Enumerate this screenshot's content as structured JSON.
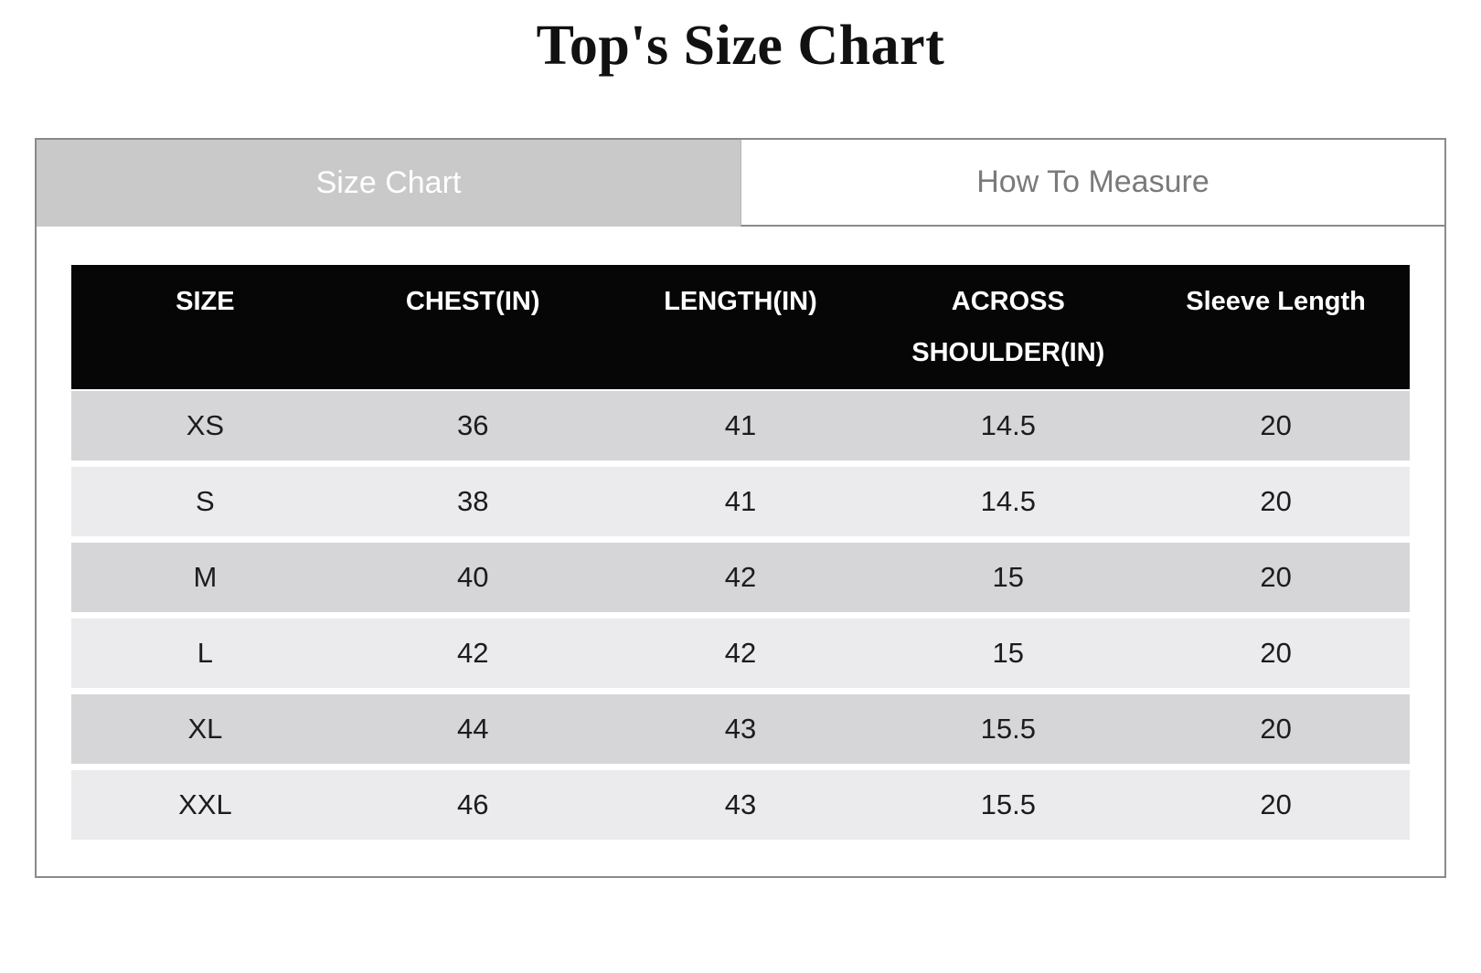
{
  "page": {
    "title": "Top's Size Chart"
  },
  "tabs": {
    "size_chart": {
      "label": "Size Chart",
      "active": true
    },
    "how_to_measure": {
      "label": "How To Measure",
      "active": false
    }
  },
  "table": {
    "columns": [
      "SIZE",
      "CHEST(IN)",
      "LENGTH(IN)",
      "ACROSS SHOULDER(IN)",
      "Sleeve Length"
    ],
    "column_keys": [
      "size",
      "chest_in",
      "length_in",
      "across_shoulder_in",
      "sleeve_length"
    ],
    "rows": [
      {
        "size": "XS",
        "chest_in": "36",
        "length_in": "41",
        "across_shoulder_in": "14.5",
        "sleeve_length": "20"
      },
      {
        "size": "S",
        "chest_in": "38",
        "length_in": "41",
        "across_shoulder_in": "14.5",
        "sleeve_length": "20"
      },
      {
        "size": "M",
        "chest_in": "40",
        "length_in": "42",
        "across_shoulder_in": "15",
        "sleeve_length": "20"
      },
      {
        "size": "L",
        "chest_in": "42",
        "length_in": "42",
        "across_shoulder_in": "15",
        "sleeve_length": "20"
      },
      {
        "size": "XL",
        "chest_in": "44",
        "length_in": "43",
        "across_shoulder_in": "15.5",
        "sleeve_length": "20"
      },
      {
        "size": "XXL",
        "chest_in": "46",
        "length_in": "43",
        "across_shoulder_in": "15.5",
        "sleeve_length": "20"
      }
    ]
  },
  "colors": {
    "panel_border": "#8a8a8a",
    "tab_active_bg": "#c9c9c9",
    "tab_active_text": "#ffffff",
    "tab_inactive_text": "#7a7a7a",
    "header_bg": "#060606",
    "header_text": "#ffffff",
    "row_dark": "#d6d6d9",
    "row_light": "#ebebed",
    "cell_text": "#1c1c1c"
  }
}
